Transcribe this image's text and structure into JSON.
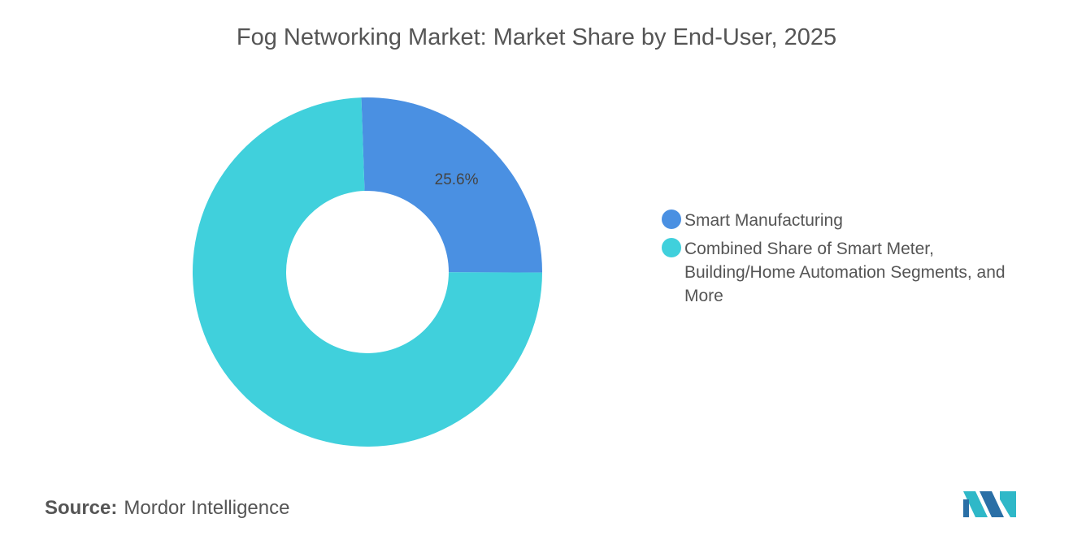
{
  "chart_data": {
    "type": "donut",
    "title": "Fog Networking Market: Market Share by End-User, 2025",
    "categories": [
      "Smart Manufacturing",
      "Combined Share of Smart Meter, Building/Home Automation Segments, and More"
    ],
    "values": [
      25.6,
      74.4
    ],
    "value_labels": [
      "25.6%",
      null
    ],
    "colors": [
      "#4a90e2",
      "#40d0dc"
    ],
    "legend": "right"
  },
  "footer": {
    "source_label": "Source:",
    "source": "Mordor Intelligence"
  }
}
